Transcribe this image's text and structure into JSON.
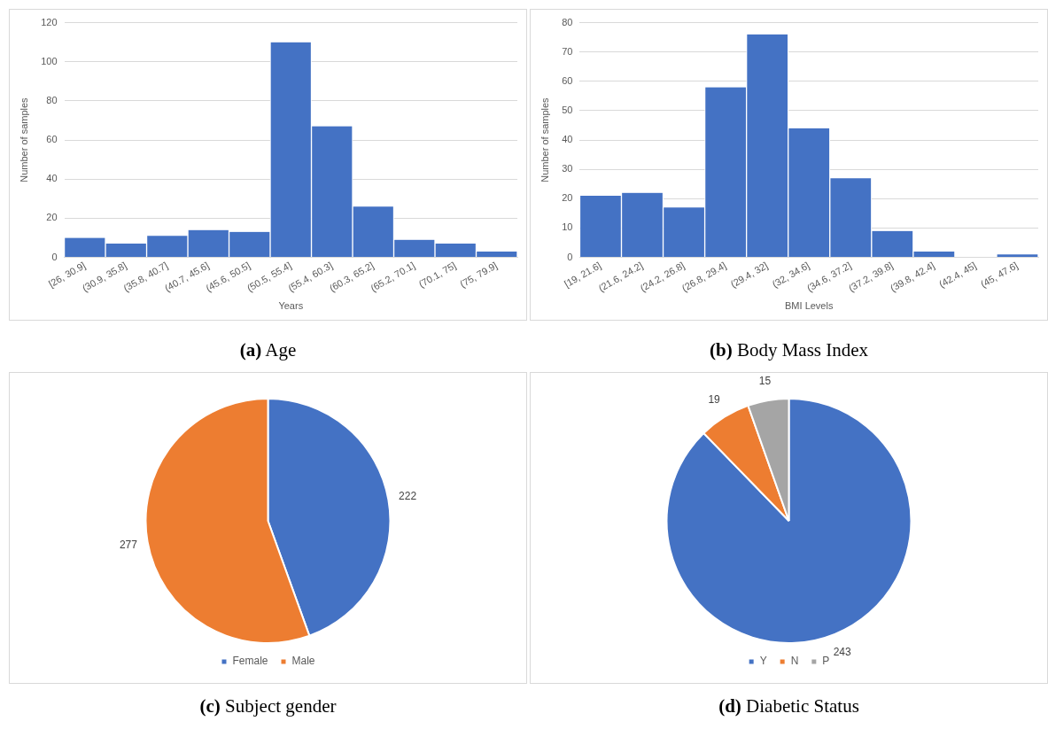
{
  "chart_data": [
    {
      "type": "bar",
      "title": "(a) Age",
      "xlabel": "Years",
      "ylabel": "Number of samples",
      "categories": [
        "[26, 30.9]",
        "(30.9, 35.8]",
        "(35.8, 40.7]",
        "(40.7, 45.6]",
        "(45.6, 50.5]",
        "(50.5, 55.4]",
        "(55.4, 60.3]",
        "(60.3, 65.2]",
        "(65.2, 70.1]",
        "(70.1, 75]",
        "(75, 79.9]"
      ],
      "values": [
        10,
        7,
        11,
        14,
        13,
        110,
        67,
        26,
        9,
        7,
        3
      ],
      "color": "#4472c4",
      "ylim": [
        0,
        120
      ],
      "yticks": [
        0,
        20,
        40,
        60,
        80,
        100,
        120
      ],
      "grid": "y",
      "legend": false
    },
    {
      "type": "bar",
      "title": "(b) Body Mass Index",
      "xlabel": "BMI Levels",
      "ylabel": "Number of samples",
      "categories": [
        "[19, 21.6]",
        "(21.6, 24.2]",
        "(24.2, 26.8]",
        "(26.8, 29.4]",
        "(29.4, 32]",
        "(32, 34.6]",
        "(34.6, 37.2]",
        "(37.2, 39.8]",
        "(39.8, 42.4]",
        "(42.4, 45]",
        "(45, 47.6]"
      ],
      "values": [
        21,
        22,
        17,
        58,
        76,
        44,
        27,
        9,
        2,
        0,
        1
      ],
      "color": "#4472c4",
      "ylim": [
        0,
        80
      ],
      "yticks": [
        0,
        10,
        20,
        30,
        40,
        50,
        60,
        70,
        80
      ],
      "grid": "y",
      "legend": false
    },
    {
      "type": "pie",
      "title": "(c) Subject gender",
      "categories": [
        "Female",
        "Male"
      ],
      "values": [
        222,
        277
      ],
      "colors": [
        "#4472c4",
        "#ed7d31"
      ],
      "data_labels": true,
      "legend": "bottom"
    },
    {
      "type": "pie",
      "title": "(d) Diabetic Status",
      "categories": [
        "Y",
        "N",
        "P"
      ],
      "values": [
        243,
        19,
        15
      ],
      "colors": [
        "#4472c4",
        "#ed7d31",
        "#a5a5a5"
      ],
      "data_labels": true,
      "legend": "bottom"
    }
  ]
}
